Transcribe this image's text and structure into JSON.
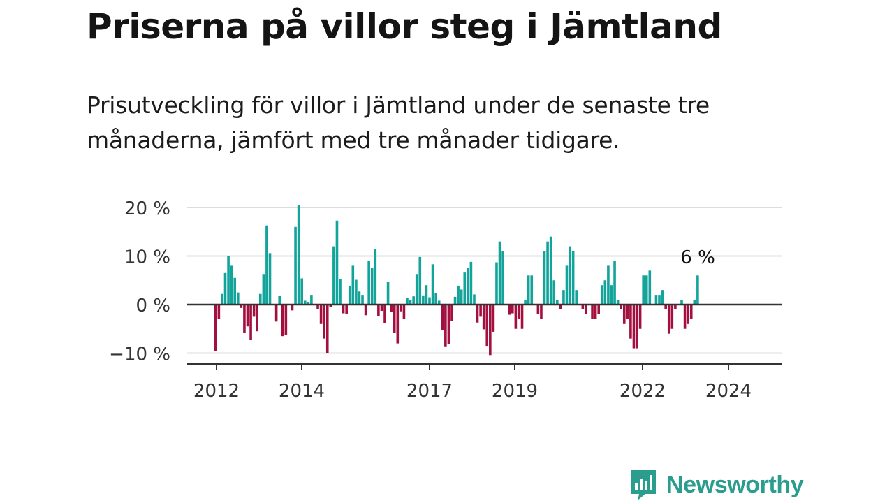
{
  "title": "Priserna på villor steg i Jämtland",
  "subtitle": "Prisutveckling för villor i Jämtland under de senaste tre månaderna, jämfört med tre månader tidigare.",
  "brand": {
    "name": "Newsworthy",
    "color": "#2a9d8f"
  },
  "chart_data": {
    "type": "bar",
    "ylim": [
      -12,
      20
    ],
    "y_ticks": [
      {
        "value": 20,
        "label": "20 %"
      },
      {
        "value": 10,
        "label": "10 %"
      },
      {
        "value": 0,
        "label": "0 %"
      },
      {
        "value": -10,
        "label": "−10 %"
      }
    ],
    "x_ticks": [
      "2012",
      "2014",
      "2017",
      "2019",
      "2022",
      "2024"
    ],
    "grid": true,
    "colors": {
      "positive": "#12a39a",
      "negative": "#a3103f",
      "grid": "#dddddd",
      "axis": "#333333"
    },
    "last_value_label": "6 %",
    "values": [
      -9.5,
      -3,
      2.2,
      6.5,
      10,
      8,
      5.5,
      2.5,
      -0.7,
      -5.8,
      -4.5,
      -7.2,
      -2.5,
      -5.5,
      2.2,
      6.3,
      16.3,
      10.6,
      0,
      -3.5,
      1.8,
      -6.5,
      -6.3,
      0,
      -1.2,
      16,
      20.5,
      5.4,
      0.8,
      0.5,
      2,
      0,
      -1,
      -4,
      -7,
      -10,
      -0.5,
      12,
      17.3,
      5.2,
      -1.8,
      -2,
      3.9,
      8,
      5.1,
      2.7,
      2,
      -2.2,
      9,
      7.5,
      11.5,
      -2.3,
      -1.3,
      -3.8,
      4.7,
      -1.5,
      -5.8,
      -8,
      -1.4,
      -2.9,
      1.3,
      0.9,
      1.7,
      6.3,
      9.8,
      1.9,
      4,
      1.5,
      8.3,
      2.3,
      0.8,
      -5.3,
      -8.6,
      -8.2,
      -3.4,
      1.6,
      3.9,
      3.1,
      6.6,
      7.6,
      8.8,
      2.1,
      -3.7,
      -2.5,
      -5.1,
      -8.5,
      -10.4,
      -5.6,
      8.7,
      13,
      11,
      0,
      -2.1,
      -1.8,
      -5,
      -3,
      -5,
      1,
      6,
      6,
      0,
      -2,
      -3,
      11,
      13,
      14,
      5,
      1,
      -1,
      3,
      8,
      12,
      11,
      3,
      0,
      -1,
      -2,
      0,
      -3,
      -3,
      -2,
      4,
      5,
      8,
      4,
      9,
      1,
      -1,
      -4,
      -3,
      -7,
      -9,
      -9,
      -5,
      6,
      6,
      7,
      0,
      2,
      2,
      3,
      -1,
      -6,
      -5,
      -1,
      0,
      1,
      -5,
      -4,
      -3,
      1,
      6
    ]
  }
}
